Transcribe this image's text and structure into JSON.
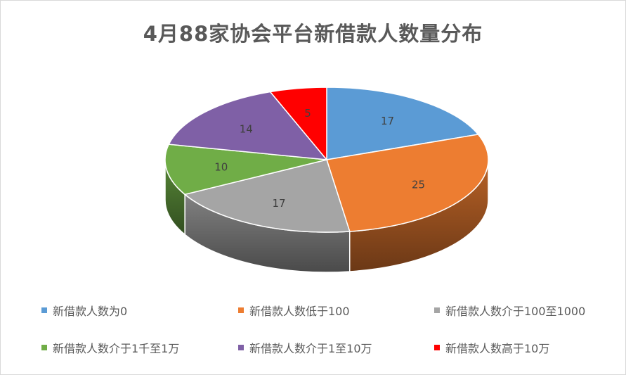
{
  "chart_data": {
    "type": "pie",
    "title": "4月88家协会平台新借款人数量分布",
    "three_d": true,
    "categories": [
      "新借款人数为0",
      "新借款人数低于100",
      "新借款人数介于100至1000",
      "新借款人数介于1千至1万",
      "新借款人数介于1至10万",
      "新借款人数高于10万"
    ],
    "values": [
      17,
      25,
      17,
      10,
      14,
      5
    ],
    "colors": [
      "#5b9bd5",
      "#ed7d31",
      "#a5a5a5",
      "#70ad47",
      "#7f60a6",
      "#ff0000"
    ],
    "legend_position": "bottom"
  }
}
